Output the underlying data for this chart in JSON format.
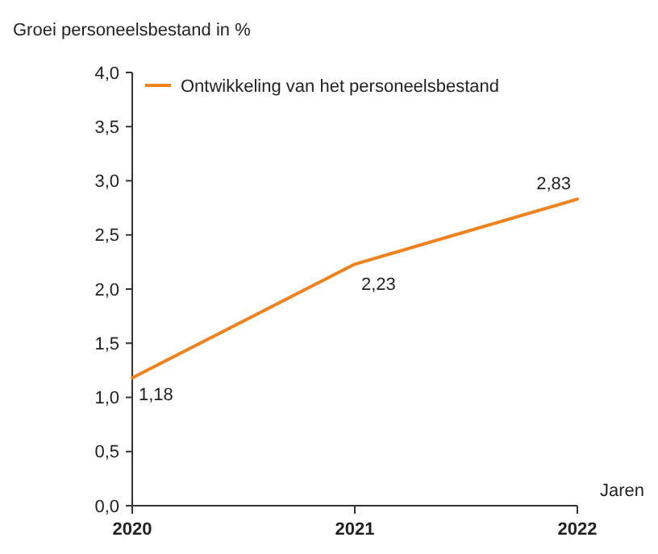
{
  "chart_data": {
    "type": "line",
    "ylabel": "Groei personeelsbestand in %",
    "xlabel": "Jaren",
    "x": [
      2020,
      2021,
      2022
    ],
    "series": [
      {
        "name": "Ontwikkeling van het personeelsbestand",
        "color": "#f0821e",
        "values": [
          1.18,
          2.23,
          2.83
        ],
        "value_labels": [
          "1,18",
          "2,23",
          "2,83"
        ]
      }
    ],
    "xlim": [
      2020,
      2022
    ],
    "xticks": [
      2020,
      2021,
      2022
    ],
    "ylim": [
      0,
      4
    ],
    "yticks": [
      {
        "value": 0,
        "label": "0,0"
      },
      {
        "value": 0.5,
        "label": "0,5"
      },
      {
        "value": 1,
        "label": "1,0"
      },
      {
        "value": 1.5,
        "label": "1,5"
      },
      {
        "value": 2,
        "label": "2,0"
      },
      {
        "value": 2.5,
        "label": "2,5"
      },
      {
        "value": 3,
        "label": "3,0"
      },
      {
        "value": 3.5,
        "label": "3,5"
      },
      {
        "value": 4,
        "label": "4,0"
      }
    ],
    "grid": false,
    "legend": "top left",
    "marker": "none",
    "line_style": "solid"
  }
}
